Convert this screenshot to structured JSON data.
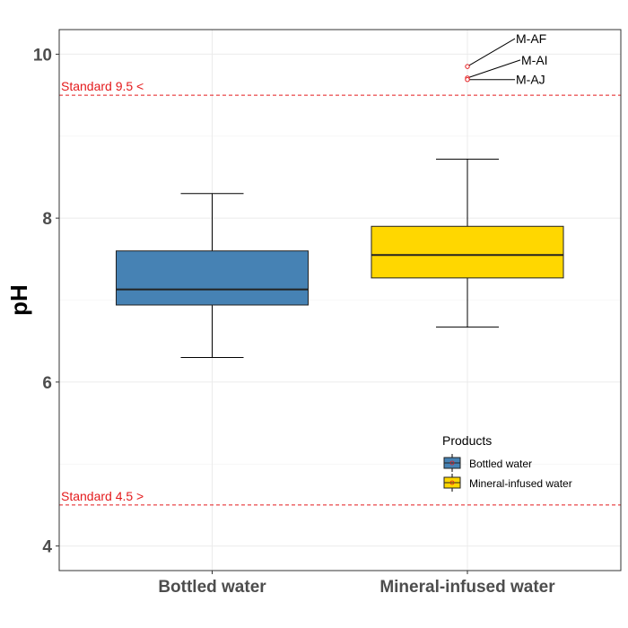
{
  "chart_data": {
    "type": "box",
    "title": "",
    "xlabel": "",
    "ylabel": "pH",
    "ylim": [
      3.7,
      10.3
    ],
    "yticks": [
      4,
      6,
      8,
      10
    ],
    "grid": true,
    "categories": [
      "Bottled water",
      "Mineral-infused water"
    ],
    "boxes": [
      {
        "name": "Bottled water",
        "color": "#4682b4",
        "min": 6.3,
        "q1": 6.94,
        "median": 7.13,
        "q3": 7.6,
        "max": 8.3
      },
      {
        "name": "Mineral-infused water",
        "color": "#ffd700",
        "min": 6.67,
        "q1": 7.27,
        "median": 7.55,
        "q3": 7.9,
        "max": 8.72
      }
    ],
    "outliers": [
      {
        "category": "Mineral-infused water",
        "y": 9.85,
        "label": "M-AF"
      },
      {
        "category": "Mineral-infused water",
        "y": 9.71,
        "label": "M-AI"
      },
      {
        "category": "Mineral-infused water",
        "y": 9.69,
        "label": "M-AJ"
      }
    ],
    "reference_lines": [
      {
        "y": 9.5,
        "label": "Standard 9.5 <",
        "color": "#e41a1c"
      },
      {
        "y": 4.5,
        "label": "Standard 4.5 >",
        "color": "#e41a1c"
      }
    ],
    "legend": {
      "title": "Products",
      "position": "bottom-right",
      "items": [
        {
          "label": "Bottled water",
          "color": "#4682b4"
        },
        {
          "label": "Mineral-infused water",
          "color": "#ffd700"
        }
      ]
    }
  }
}
